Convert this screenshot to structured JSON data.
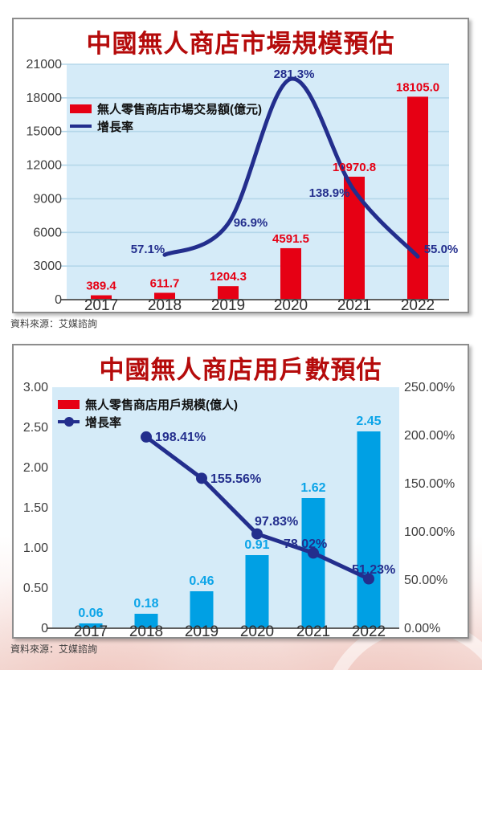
{
  "charts": [
    {
      "title": "中國無人商店市場規模預估",
      "title_color": "#b50b0b",
      "source": "資料來源：艾媒諮詢",
      "legend": [
        {
          "label": "無人零售商店市場交易額(億元)",
          "marker": "bar-swatch"
        },
        {
          "label": "增長率",
          "marker": "line-swatch"
        }
      ],
      "colors": {
        "bar": "#e60014",
        "bar_label": "#e60014",
        "line": "#232e8d",
        "line_label": "#232e8d",
        "plot_bg": "#d5ebf8",
        "grid": "#b5d7ea",
        "axis": "#5f5f5f",
        "tick_text": "#3d3d3d",
        "x_label_text": "#2f2f2f"
      }
    },
    {
      "title": "中國無人商店用戶數預估",
      "title_color": "#b50b0b",
      "source": "資料來源：艾媒諮詢",
      "legend": [
        {
          "label": "無人零售商店用戶規模(億人)",
          "marker": "bar-swatch"
        },
        {
          "label": "增長率",
          "marker": "line-dot-swatch"
        }
      ],
      "colors": {
        "bar": "#00a0e4",
        "bar_label": "#0ba4e8",
        "line": "#232e8d",
        "line_label": "#232e8d",
        "plot_bg": "#d5ebf8",
        "grid": "#b5d7ea",
        "axis": "#5f5f5f",
        "tick_text": "#3d3d3d",
        "x_label_text": "#2f2f2f"
      }
    }
  ],
  "chart_data": [
    {
      "type": "bar+line",
      "title": "中國無人商店市場規模預估",
      "categories": [
        "2017",
        "2018",
        "2019",
        "2020",
        "2021",
        "2022"
      ],
      "series": [
        {
          "name": "無人零售商店市場交易額(億元)",
          "type": "bar",
          "axis": "left",
          "values": [
            389.4,
            611.7,
            1204.3,
            4591.5,
            10970.8,
            18105.0
          ],
          "labels": [
            "389.4",
            "611.7",
            "1204.3",
            "4591.5",
            "10970.8",
            "18105.0"
          ]
        },
        {
          "name": "增長率",
          "type": "line",
          "axis": "hidden",
          "unit": "%",
          "values": [
            null,
            57.1,
            96.9,
            281.3,
            138.9,
            55.0
          ],
          "labels": [
            "57.1%",
            "96.9%",
            "281.3%",
            "138.9%",
            "55.0%"
          ]
        }
      ],
      "left_axis": {
        "min": 0,
        "max": 21000,
        "ticks": [
          "21000",
          "18000",
          "15000",
          "12000",
          "9000",
          "6000",
          "3000",
          "0"
        ]
      },
      "hidden_line_axis_max": 300,
      "grid": true,
      "line_style": "smooth",
      "line_markers": false,
      "legend_position": "top-left"
    },
    {
      "type": "bar+line",
      "title": "中國無人商店用戶數預估",
      "categories": [
        "2017",
        "2018",
        "2019",
        "2020",
        "2021",
        "2022"
      ],
      "series": [
        {
          "name": "無人零售商店用戶規模(億人)",
          "type": "bar",
          "axis": "left",
          "values": [
            0.06,
            0.18,
            0.46,
            0.91,
            1.62,
            2.45
          ],
          "labels": [
            "0.06",
            "0.18",
            "0.46",
            "0.91",
            "1.62",
            "2.45"
          ]
        },
        {
          "name": "增長率",
          "type": "line",
          "axis": "right",
          "unit": "%",
          "values": [
            null,
            198.41,
            155.56,
            97.83,
            78.02,
            51.23
          ],
          "labels": [
            "198.41%",
            "155.56%",
            "97.83%",
            "78.02%",
            "51.23%"
          ]
        }
      ],
      "left_axis": {
        "min": 0,
        "max": 3.0,
        "ticks": [
          "3.00",
          "2.50",
          "2.00",
          "1.50",
          "1.00",
          "0.50",
          "0"
        ]
      },
      "right_axis": {
        "min": 0,
        "max": 250,
        "ticks": [
          "250.00%",
          "200.00%",
          "150.00%",
          "100.00%",
          "50.00%",
          "0.00%"
        ]
      },
      "grid": false,
      "line_style": "straight",
      "line_markers": true,
      "legend_position": "top-left"
    }
  ]
}
